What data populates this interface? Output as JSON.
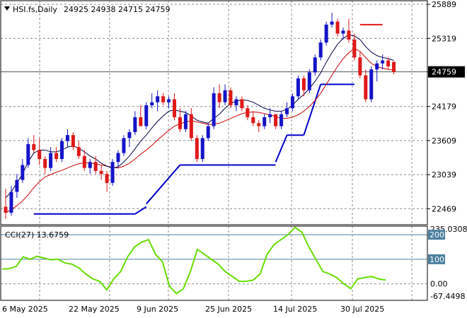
{
  "header": {
    "symbol": "HSI.fs,Daily",
    "ohlc": "24925 24938 24715 24759",
    "indicator_label": "CCI(27) 13.6759"
  },
  "colors": {
    "bull": "#1414c8",
    "bear": "#e01818",
    "ma_fast": "#000044",
    "ma_slow": "#cc0000",
    "trail": "#0000cc",
    "cci": "#66dd00",
    "grid": "#8c8c8c"
  },
  "chart_data": [
    {
      "type": "candlestick",
      "title": "",
      "ylim": [
        22200,
        25950
      ],
      "y_ticks": [
        22469,
        23039,
        23609,
        24179,
        24759,
        25319,
        25889
      ],
      "last_price": 24759,
      "x_labels": [
        "6 May 2025",
        "22 May 2025",
        "9 Jun 2025",
        "25 Jun 2025",
        "14 Jul 2025",
        "30 Jul 2025"
      ],
      "candles": [
        [
          22500,
          22800,
          22300,
          22400
        ],
        [
          22400,
          22850,
          22350,
          22750
        ],
        [
          22750,
          23050,
          22650,
          22950
        ],
        [
          22950,
          23300,
          22900,
          23200
        ],
        [
          23200,
          23650,
          23150,
          23550
        ],
        [
          23550,
          23700,
          23400,
          23450
        ],
        [
          23450,
          23650,
          23200,
          23300
        ],
        [
          23300,
          23350,
          23050,
          23150
        ],
        [
          23150,
          23500,
          23100,
          23400
        ],
        [
          23400,
          23500,
          23250,
          23300
        ],
        [
          23300,
          23650,
          23250,
          23600
        ],
        [
          23600,
          23800,
          23500,
          23700
        ],
        [
          23700,
          23750,
          23450,
          23500
        ],
        [
          23500,
          23600,
          23300,
          23350
        ],
        [
          23350,
          23450,
          23100,
          23150
        ],
        [
          23150,
          23300,
          23050,
          23250
        ],
        [
          23250,
          23350,
          23050,
          23100
        ],
        [
          23100,
          23200,
          22950,
          23050
        ],
        [
          23050,
          23100,
          22750,
          22900
        ],
        [
          22900,
          23300,
          22850,
          23250
        ],
        [
          23250,
          23450,
          23150,
          23400
        ],
        [
          23400,
          23700,
          23350,
          23650
        ],
        [
          23650,
          23800,
          23500,
          23750
        ],
        [
          23750,
          24100,
          23700,
          24000
        ],
        [
          24000,
          24200,
          23850,
          23850
        ],
        [
          23850,
          24250,
          23800,
          24200
        ],
        [
          24200,
          24400,
          24150,
          24250
        ],
        [
          24250,
          24450,
          24100,
          24350
        ],
        [
          24350,
          24400,
          24200,
          24250
        ],
        [
          24250,
          24350,
          24150,
          24300
        ],
        [
          24300,
          24400,
          23950,
          24000
        ],
        [
          24000,
          24150,
          23750,
          23800
        ],
        [
          23800,
          24100,
          23750,
          24050
        ],
        [
          24050,
          24150,
          23600,
          23650
        ],
        [
          23650,
          23700,
          23250,
          23300
        ],
        [
          23300,
          23700,
          23250,
          23650
        ],
        [
          23650,
          23900,
          23600,
          23850
        ],
        [
          23850,
          24500,
          23800,
          24400
        ],
        [
          24400,
          24550,
          24150,
          24250
        ],
        [
          24250,
          24550,
          24200,
          24450
        ],
        [
          24450,
          24500,
          24150,
          24200
        ],
        [
          24200,
          24350,
          24100,
          24300
        ],
        [
          24300,
          24350,
          24100,
          24150
        ],
        [
          24150,
          24200,
          23950,
          24000
        ],
        [
          24000,
          24100,
          23850,
          23900
        ],
        [
          23900,
          23950,
          23750,
          23850
        ],
        [
          23850,
          24050,
          23800,
          24000
        ],
        [
          24000,
          24150,
          23900,
          24050
        ],
        [
          24050,
          24050,
          23800,
          23850
        ],
        [
          23850,
          24100,
          23800,
          24050
        ],
        [
          24050,
          24250,
          24000,
          24150
        ],
        [
          24150,
          24400,
          24100,
          24350
        ],
        [
          24350,
          24700,
          24300,
          24650
        ],
        [
          24650,
          24700,
          24350,
          24450
        ],
        [
          24450,
          24800,
          24400,
          24750
        ],
        [
          24750,
          25050,
          24700,
          25000
        ],
        [
          25000,
          25300,
          24950,
          25250
        ],
        [
          25250,
          25600,
          25200,
          25550
        ],
        [
          25550,
          25750,
          25500,
          25600
        ],
        [
          25600,
          25650,
          25350,
          25400
        ],
        [
          25400,
          25500,
          25300,
          25450
        ],
        [
          25450,
          25650,
          25250,
          25300
        ],
        [
          25300,
          25400,
          24950,
          25000
        ],
        [
          25000,
          25100,
          24650,
          24700
        ],
        [
          24700,
          24800,
          24250,
          24300
        ],
        [
          24300,
          24850,
          24250,
          24800
        ],
        [
          24800,
          24950,
          24600,
          24900
        ],
        [
          24900,
          25050,
          24800,
          24950
        ],
        [
          24950,
          25000,
          24800,
          24850
        ],
        [
          24925,
          24938,
          24715,
          24759
        ]
      ],
      "ma_fast": [
        22650,
        22750,
        22900,
        23050,
        23250,
        23400,
        23450,
        23450,
        23420,
        23420,
        23450,
        23500,
        23520,
        23480,
        23420,
        23350,
        23300,
        23230,
        23180,
        23150,
        23170,
        23250,
        23350,
        23470,
        23600,
        23700,
        23820,
        23930,
        24020,
        24100,
        24120,
        24100,
        24080,
        24020,
        23950,
        23920,
        23900,
        23980,
        24050,
        24150,
        24230,
        24270,
        24290,
        24280,
        24250,
        24200,
        24150,
        24120,
        24100,
        24100,
        24130,
        24200,
        24300,
        24380,
        24480,
        24600,
        24740,
        24920,
        25080,
        25220,
        25320,
        25380,
        25360,
        25300,
        25180,
        25090,
        25030,
        25000,
        24980,
        24950
      ],
      "ma_slow": [
        22400,
        22450,
        22520,
        22600,
        22700,
        22820,
        22920,
        23000,
        23040,
        23080,
        23110,
        23150,
        23190,
        23220,
        23240,
        23230,
        23220,
        23200,
        23180,
        23160,
        23150,
        23180,
        23230,
        23300,
        23380,
        23450,
        23530,
        23620,
        23700,
        23780,
        23850,
        23890,
        23920,
        23940,
        23920,
        23900,
        23880,
        23880,
        23900,
        23940,
        23980,
        24020,
        24060,
        24080,
        24090,
        24080,
        24060,
        24040,
        24010,
        23980,
        23980,
        24000,
        24040,
        24100,
        24180,
        24280,
        24400,
        24550,
        24700,
        24850,
        24980,
        25080,
        25150,
        25100,
        25000,
        24900,
        24850,
        24820,
        24800,
        24790
      ],
      "trail": [
        {
          "x": [
            5,
            9
          ],
          "y": [
            22380,
            22380
          ]
        },
        {
          "x": [
            9,
            23
          ],
          "y": [
            22380,
            22380
          ]
        },
        {
          "x": [
            23,
            25
          ],
          "y": [
            22380,
            22500
          ]
        },
        {
          "x": [
            25,
            31
          ],
          "y": [
            22550,
            23200
          ]
        },
        {
          "x": [
            31,
            48
          ],
          "y": [
            23200,
            23200
          ]
        },
        {
          "x": [
            48,
            50
          ],
          "y": [
            23250,
            23700
          ]
        },
        {
          "x": [
            50,
            53
          ],
          "y": [
            23700,
            23700
          ]
        },
        {
          "x": [
            53,
            56
          ],
          "y": [
            23700,
            24550
          ]
        },
        {
          "x": [
            56,
            62
          ],
          "y": [
            24550,
            24550
          ]
        },
        {
          "x": [
            63,
            67
          ],
          "y": [
            25550,
            25550
          ]
        }
      ]
    },
    {
      "type": "line",
      "title": "",
      "series_name": "CCI(27)",
      "ylim": [
        -67.4498,
        235.0308
      ],
      "y_ticks": [
        235.0308,
        200,
        100,
        0.0,
        -67.4498
      ],
      "y_tick_labels": [
        "235.0308",
        "200",
        "100",
        "0.00",
        "-67.4498"
      ],
      "levels": [
        200,
        100
      ],
      "values": [
        60,
        62,
        70,
        110,
        100,
        112,
        105,
        98,
        100,
        85,
        80,
        65,
        40,
        20,
        10,
        -25,
        20,
        50,
        110,
        150,
        170,
        180,
        120,
        90,
        -10,
        -40,
        -20,
        50,
        140,
        120,
        100,
        80,
        50,
        30,
        10,
        10,
        15,
        40,
        120,
        160,
        180,
        200,
        230,
        210,
        150,
        100,
        50,
        40,
        25,
        0,
        -20,
        20,
        25,
        30,
        20,
        15
      ]
    }
  ]
}
